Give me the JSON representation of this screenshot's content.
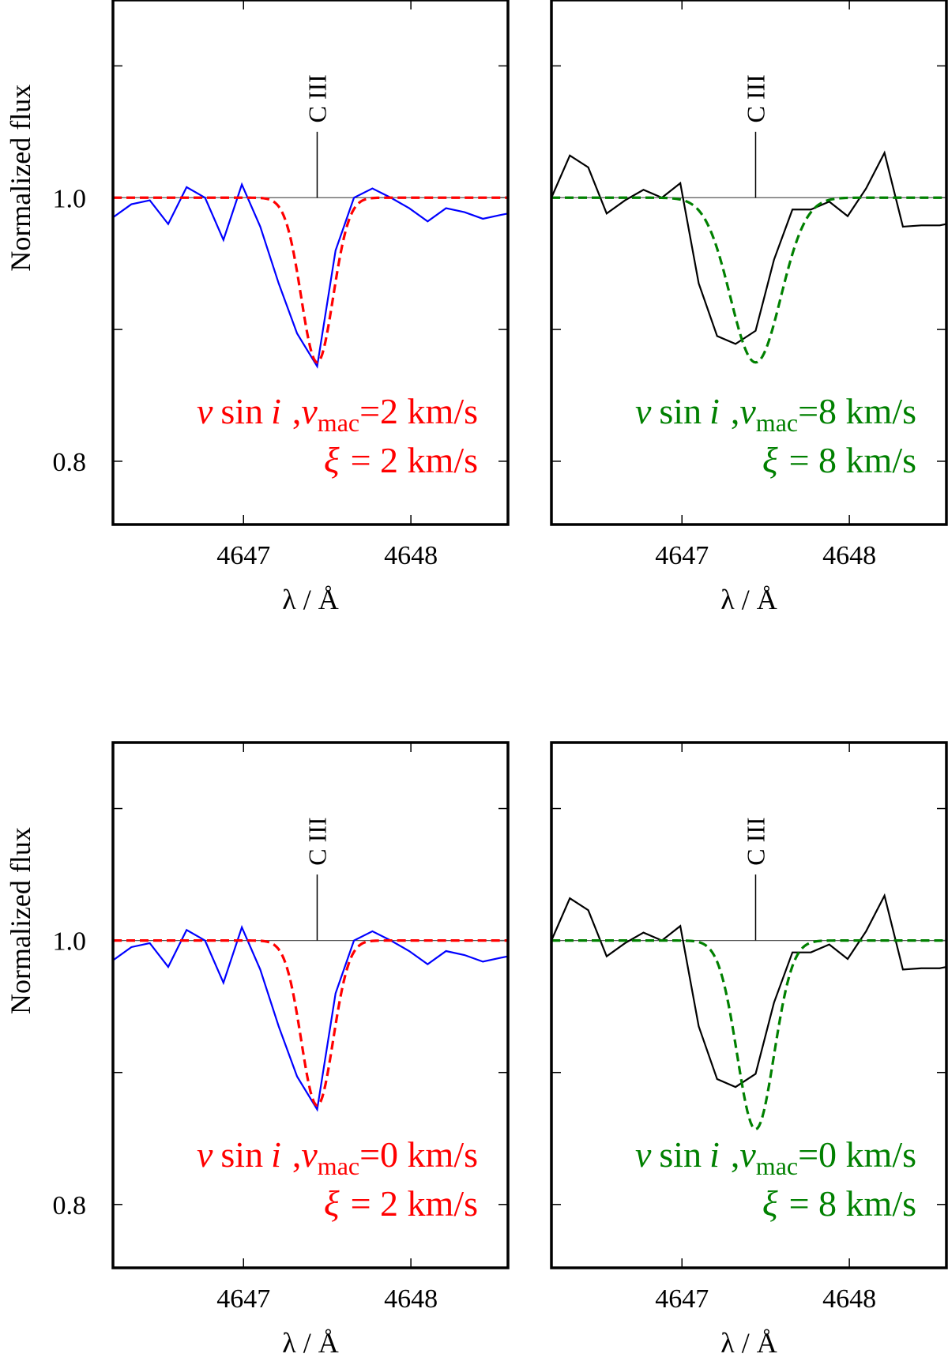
{
  "chart_data": [
    {
      "type": "line",
      "position": "top-left",
      "xlabel": "λ / Å",
      "ylabel": "Normalized flux",
      "xlim": [
        4646.22,
        4648.58
      ],
      "ylim": [
        0.752,
        1.15
      ],
      "x_ticks": [
        4647,
        4648
      ],
      "x_tick_labels": [
        "4647",
        "4648"
      ],
      "y_ticks": [
        0.8,
        0.9,
        1.0,
        1.1
      ],
      "y_tick_labels": [
        "0.8",
        "",
        "1.0",
        ""
      ],
      "show_y_labels": true,
      "continuum": 1.0,
      "line_marker": {
        "x": 4647.44,
        "label": "C III",
        "y_from": 1.0,
        "y_to": 1.05
      },
      "annotation": {
        "v_symbol": "v",
        "sin_text": "sin",
        "i_symbol": "i",
        "comma": ",",
        "v2_symbol": "v",
        "mac_sub": "mac",
        "v_value": "=2 km/s",
        "xi_symbol": "ξ",
        "xi_value": "= 2 km/s",
        "color": "#ff0000"
      },
      "series": [
        {
          "name": "observed",
          "color": "#0000ff",
          "style": "solid",
          "x": [
            4646.22,
            4646.33,
            4646.44,
            4646.55,
            4646.66,
            4646.77,
            4646.88,
            4646.99,
            4647.1,
            4647.21,
            4647.32,
            4647.44,
            4647.55,
            4647.66,
            4647.77,
            4647.88,
            4647.99,
            4648.1,
            4648.21,
            4648.32,
            4648.43,
            4648.54,
            4648.58
          ],
          "y": [
            0.985,
            0.995,
            0.998,
            0.98,
            1.008,
            1.0,
            0.968,
            1.01,
            0.978,
            0.935,
            0.897,
            0.872,
            0.96,
            1.0,
            1.007,
            1.0,
            0.992,
            0.982,
            0.992,
            0.989,
            0.984,
            0.987,
            0.988
          ]
        },
        {
          "name": "model",
          "color": "#ff0000",
          "style": "dashed",
          "line_center": 4647.44,
          "depth": 0.125,
          "width": 0.095
        }
      ]
    },
    {
      "type": "line",
      "position": "top-right",
      "xlabel": "λ / Å",
      "ylabel": "",
      "xlim": [
        4646.22,
        4648.58
      ],
      "ylim": [
        0.752,
        1.15
      ],
      "x_ticks": [
        4647,
        4648
      ],
      "x_tick_labels": [
        "4647",
        "4648"
      ],
      "y_ticks": [
        0.8,
        0.9,
        1.0,
        1.1
      ],
      "y_tick_labels": [
        "",
        "",
        "",
        ""
      ],
      "show_y_labels": false,
      "continuum": 1.0,
      "line_marker": {
        "x": 4647.44,
        "label": "C III",
        "y_from": 1.0,
        "y_to": 1.05
      },
      "annotation": {
        "v_symbol": "v",
        "sin_text": "sin",
        "i_symbol": "i",
        "comma": ",",
        "v2_symbol": "v",
        "mac_sub": "mac",
        "v_value": "=8 km/s",
        "xi_symbol": "ξ",
        "xi_value": "= 8 km/s",
        "color": "#008000"
      },
      "series": [
        {
          "name": "observed",
          "color": "#000000",
          "style": "solid",
          "x": [
            4646.22,
            4646.33,
            4646.44,
            4646.55,
            4646.66,
            4646.77,
            4646.88,
            4646.99,
            4647.1,
            4647.21,
            4647.32,
            4647.44,
            4647.55,
            4647.66,
            4647.77,
            4647.88,
            4647.99,
            4648.1,
            4648.21,
            4648.32,
            4648.43,
            4648.54,
            4648.58
          ],
          "y": [
            1.0,
            1.032,
            1.023,
            0.988,
            0.998,
            1.006,
            1.0,
            1.011,
            0.935,
            0.895,
            0.889,
            0.899,
            0.953,
            0.991,
            0.991,
            0.997,
            0.986,
            1.007,
            1.034,
            0.978,
            0.979,
            0.979,
            0.98
          ]
        },
        {
          "name": "model",
          "color": "#008000",
          "style": "dashed",
          "line_center": 4647.44,
          "depth": 0.125,
          "width": 0.15
        }
      ]
    },
    {
      "type": "line",
      "position": "bottom-left",
      "xlabel": "λ / Å",
      "ylabel": "Normalized flux",
      "xlim": [
        4646.22,
        4648.58
      ],
      "ylim": [
        0.752,
        1.15
      ],
      "x_ticks": [
        4647,
        4648
      ],
      "x_tick_labels": [
        "4647",
        "4648"
      ],
      "y_ticks": [
        0.8,
        0.9,
        1.0,
        1.1
      ],
      "y_tick_labels": [
        "0.8",
        "",
        "1.0",
        ""
      ],
      "show_y_labels": true,
      "continuum": 1.0,
      "line_marker": {
        "x": 4647.44,
        "label": "C III",
        "y_from": 1.0,
        "y_to": 1.05
      },
      "annotation": {
        "v_symbol": "v",
        "sin_text": "sin",
        "i_symbol": "i",
        "comma": ",",
        "v2_symbol": "v",
        "mac_sub": "mac",
        "v_value": "=0 km/s",
        "xi_symbol": "ξ",
        "xi_value": "= 2 km/s",
        "color": "#ff0000"
      },
      "series": [
        {
          "name": "observed",
          "color": "#0000ff",
          "style": "solid",
          "x": [
            4646.22,
            4646.33,
            4646.44,
            4646.55,
            4646.66,
            4646.77,
            4646.88,
            4646.99,
            4647.1,
            4647.21,
            4647.32,
            4647.44,
            4647.55,
            4647.66,
            4647.77,
            4647.88,
            4647.99,
            4648.1,
            4648.21,
            4648.32,
            4648.43,
            4648.54,
            4648.58
          ],
          "y": [
            0.985,
            0.995,
            0.998,
            0.98,
            1.008,
            1.0,
            0.968,
            1.01,
            0.978,
            0.935,
            0.897,
            0.872,
            0.96,
            1.0,
            1.007,
            1.0,
            0.992,
            0.982,
            0.992,
            0.989,
            0.984,
            0.987,
            0.988
          ]
        },
        {
          "name": "model",
          "color": "#ff0000",
          "style": "dashed",
          "line_center": 4647.44,
          "depth": 0.125,
          "width": 0.095
        }
      ]
    },
    {
      "type": "line",
      "position": "bottom-right",
      "xlabel": "λ / Å",
      "ylabel": "",
      "xlim": [
        4646.22,
        4648.58
      ],
      "ylim": [
        0.752,
        1.15
      ],
      "x_ticks": [
        4647,
        4648
      ],
      "x_tick_labels": [
        "4647",
        "4648"
      ],
      "y_ticks": [
        0.8,
        0.9,
        1.0,
        1.1
      ],
      "y_tick_labels": [
        "",
        "",
        "",
        ""
      ],
      "show_y_labels": false,
      "continuum": 1.0,
      "line_marker": {
        "x": 4647.44,
        "label": "C III",
        "y_from": 1.0,
        "y_to": 1.05
      },
      "annotation": {
        "v_symbol": "v",
        "sin_text": "sin",
        "i_symbol": "i",
        "comma": ",",
        "v2_symbol": "v",
        "mac_sub": "mac",
        "v_value": "=0 km/s",
        "xi_symbol": "ξ",
        "xi_value": "= 8 km/s",
        "color": "#008000"
      },
      "series": [
        {
          "name": "observed",
          "color": "#000000",
          "style": "solid",
          "x": [
            4646.22,
            4646.33,
            4646.44,
            4646.55,
            4646.66,
            4646.77,
            4646.88,
            4646.99,
            4647.1,
            4647.21,
            4647.32,
            4647.44,
            4647.55,
            4647.66,
            4647.77,
            4647.88,
            4647.99,
            4648.1,
            4648.21,
            4648.32,
            4648.43,
            4648.54,
            4648.58
          ],
          "y": [
            1.0,
            1.032,
            1.023,
            0.988,
            0.998,
            1.006,
            1.0,
            1.011,
            0.935,
            0.895,
            0.889,
            0.899,
            0.953,
            0.991,
            0.991,
            0.997,
            0.986,
            1.007,
            1.034,
            0.978,
            0.979,
            0.979,
            0.98
          ]
        },
        {
          "name": "model",
          "color": "#008000",
          "style": "dashed",
          "line_center": 4647.44,
          "depth": 0.143,
          "width": 0.11
        }
      ]
    }
  ]
}
